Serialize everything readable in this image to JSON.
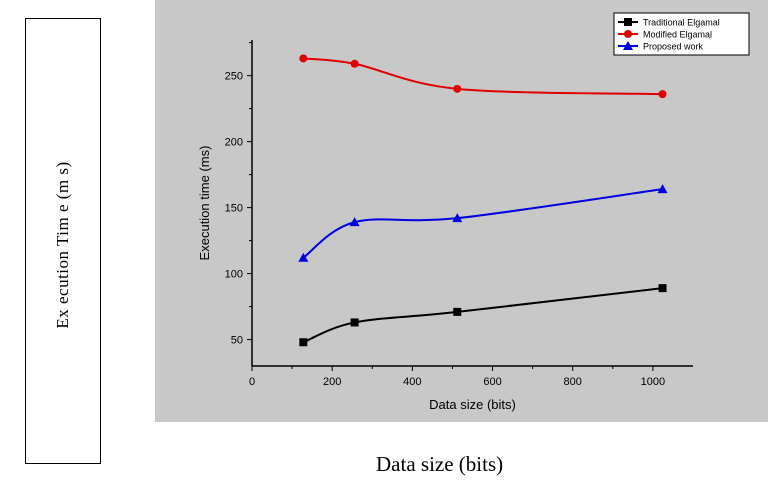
{
  "outer": {
    "ylabel": "Ex ecution Tim e (m s)",
    "xlabel": "Data size (bits)"
  },
  "chart_data": {
    "type": "line",
    "xlabel": "Data size (bits)",
    "ylabel": "Execution time (ms)",
    "xlim": [
      0,
      1100
    ],
    "ylim": [
      30,
      277
    ],
    "xticks": [
      0,
      200,
      400,
      600,
      800,
      1000
    ],
    "yticks": [
      50,
      100,
      150,
      200,
      250
    ],
    "grid": false,
    "legend_position": "top-right",
    "series": [
      {
        "name": "Traditional Elgamal",
        "color": "#000000",
        "marker": "square",
        "x": [
          128,
          256,
          512,
          1024
        ],
        "y": [
          48,
          63,
          71,
          89
        ]
      },
      {
        "name": "Modified Elgamal",
        "color": "#e00000",
        "marker": "circle",
        "x": [
          128,
          256,
          512,
          1024
        ],
        "y": [
          263,
          259,
          240,
          236
        ]
      },
      {
        "name": "Proposed work",
        "color": "#0000e0",
        "marker": "triangle",
        "x": [
          128,
          256,
          512,
          1024
        ],
        "y": [
          112,
          139,
          142,
          164
        ]
      }
    ]
  }
}
